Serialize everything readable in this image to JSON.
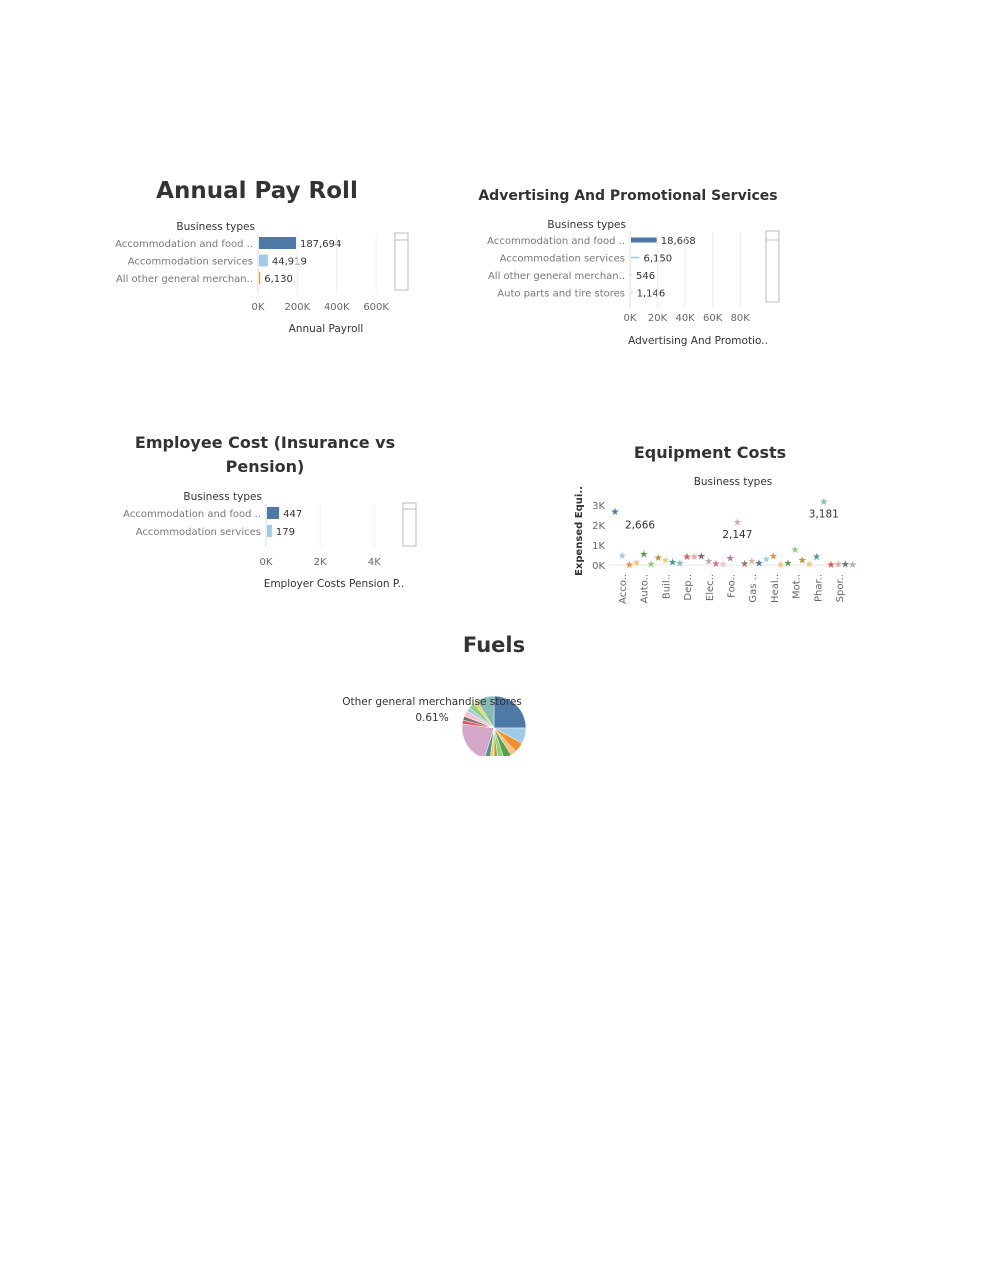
{
  "payroll": {
    "title": "Annual Pay Roll",
    "row_header": "Business types",
    "xlabel": "Annual Payroll",
    "ticks": [
      "0K",
      "200K",
      "400K",
      "600K"
    ],
    "bar_color": "#4e79a7",
    "bar_color_light": "#a0cbe8",
    "bar_color_orange": "#f28e2b"
  },
  "advertising": {
    "title": "Advertising And Promotional Services",
    "row_header": "Business types",
    "xlabel": "Advertising And Promotio..",
    "ticks": [
      "0K",
      "20K",
      "40K",
      "60K",
      "80K"
    ]
  },
  "employee": {
    "title_line1": "Employee Cost (Insurance vs",
    "title_line2": "Pension)",
    "row_header": "Business types",
    "xlabel": "Employer Costs Pension P..",
    "ticks": [
      "0K",
      "2K",
      "4K"
    ]
  },
  "equipment": {
    "title": "Equipment Costs",
    "header": "Business types",
    "ylabel": "Expensed Equi..",
    "yticks": [
      "3K",
      "2K",
      "1K",
      "0K"
    ],
    "xlabels": [
      "Acco..",
      "Auto..",
      "Buil..",
      "Dep..",
      "Elec..",
      "Foo..",
      "Gas ..",
      "Heal..",
      "Mot..",
      "Phar..",
      "Spor.."
    ]
  },
  "fuels": {
    "title": "Fuels",
    "tooltip_name": "Other general merchandise stores",
    "tooltip_value": "0.61%"
  },
  "chart_data": [
    {
      "type": "bar",
      "title": "Annual Pay Roll",
      "xlabel": "Annual Payroll",
      "categories": [
        "Accommodation and food ..",
        "Accommodation services",
        "All other general merchan.."
      ],
      "values": [
        187694,
        44919,
        6130
      ],
      "value_labels": [
        "187,694",
        "44,919",
        "6,130"
      ],
      "xlim": [
        0,
        650000
      ]
    },
    {
      "type": "bar",
      "title": "Advertising And Promotional Services",
      "xlabel": "Advertising And Promotio..",
      "categories": [
        "Accommodation and food ..",
        "Accommodation services",
        "All other general merchan..",
        "Auto parts and tire stores"
      ],
      "values": [
        18668,
        6150,
        546,
        1146
      ],
      "value_labels": [
        "18,668",
        "6,150",
        "546",
        "1,146"
      ],
      "xlim": [
        0,
        90000
      ]
    },
    {
      "type": "bar",
      "title": "Employee Cost (Insurance vs Pension)",
      "xlabel": "Employer Costs Pension P..",
      "categories": [
        "Accommodation and food ..",
        "Accommodation services"
      ],
      "values": [
        447,
        179
      ],
      "value_labels": [
        "447",
        "179"
      ],
      "xlim": [
        0,
        4800
      ]
    },
    {
      "type": "scatter",
      "title": "Equipment Costs",
      "ylabel": "Expensed Equi..",
      "ylim": [
        0,
        3300
      ],
      "points": [
        {
          "x": 0,
          "y": 2666,
          "label": "2,666",
          "color": "#4e79a7"
        },
        {
          "x": 1,
          "y": 480,
          "color": "#a0cbe8"
        },
        {
          "x": 2,
          "y": 20,
          "color": "#f28e2b"
        },
        {
          "x": 3,
          "y": 120,
          "color": "#ffbe7d"
        },
        {
          "x": 4,
          "y": 560,
          "color": "#59a14f"
        },
        {
          "x": 5,
          "y": 50,
          "color": "#8cd17d"
        },
        {
          "x": 6,
          "y": 380,
          "color": "#b6992d"
        },
        {
          "x": 7,
          "y": 250,
          "color": "#f1ce63"
        },
        {
          "x": 8,
          "y": 150,
          "color": "#499894"
        },
        {
          "x": 9,
          "y": 90,
          "color": "#86bcb6"
        },
        {
          "x": 10,
          "y": 430,
          "color": "#e15759"
        },
        {
          "x": 11,
          "y": 420,
          "color": "#ff9d9a"
        },
        {
          "x": 12,
          "y": 440,
          "color": "#79706e"
        },
        {
          "x": 13,
          "y": 210,
          "color": "#bab0ac"
        },
        {
          "x": 14,
          "y": 80,
          "color": "#d37295"
        },
        {
          "x": 15,
          "y": 60,
          "color": "#fabfd2"
        },
        {
          "x": 16,
          "y": 350,
          "color": "#b07aa1"
        },
        {
          "x": 17,
          "y": 2147,
          "label": "2,147",
          "color": "#d4a6c8"
        },
        {
          "x": 18,
          "y": 70,
          "color": "#9d7660"
        },
        {
          "x": 19,
          "y": 210,
          "color": "#d7b5a6"
        },
        {
          "x": 20,
          "y": 110,
          "color": "#4e79a7"
        },
        {
          "x": 21,
          "y": 300,
          "color": "#a0cbe8"
        },
        {
          "x": 22,
          "y": 460,
          "color": "#f28e2b"
        },
        {
          "x": 23,
          "y": 30,
          "color": "#ffbe7d"
        },
        {
          "x": 24,
          "y": 110,
          "color": "#59a14f"
        },
        {
          "x": 25,
          "y": 780,
          "color": "#8cd17d"
        },
        {
          "x": 26,
          "y": 260,
          "color": "#b6992d"
        },
        {
          "x": 27,
          "y": 60,
          "color": "#f1ce63"
        },
        {
          "x": 28,
          "y": 420,
          "color": "#499894"
        },
        {
          "x": 29,
          "y": 3181,
          "label": "3,181",
          "color": "#86bcb6"
        },
        {
          "x": 30,
          "y": 20,
          "color": "#e15759"
        },
        {
          "x": 31,
          "y": 60,
          "color": "#ff9d9a"
        },
        {
          "x": 32,
          "y": 50,
          "color": "#79706e"
        },
        {
          "x": 33,
          "y": 30,
          "color": "#bab0ac"
        }
      ]
    },
    {
      "type": "pie",
      "title": "Fuels",
      "highlight": {
        "name": "Other general merchandise stores",
        "value": 0.61
      },
      "slices": [
        {
          "value": 25,
          "color": "#4e79a7"
        },
        {
          "value": 8,
          "color": "#a0cbe8"
        },
        {
          "value": 5,
          "color": "#f28e2b"
        },
        {
          "value": 3,
          "color": "#ffbe7d"
        },
        {
          "value": 4,
          "color": "#59a14f"
        },
        {
          "value": 3,
          "color": "#8cd17d"
        },
        {
          "value": 2,
          "color": "#b6992d"
        },
        {
          "value": 2,
          "color": "#f1ce63"
        },
        {
          "value": 3,
          "color": "#499894"
        },
        {
          "value": 22,
          "color": "#d4a6c8"
        },
        {
          "value": 2,
          "color": "#e15759"
        },
        {
          "value": 2,
          "color": "#79706e"
        },
        {
          "value": 3,
          "color": "#fabfd2"
        },
        {
          "value": 2,
          "color": "#a0cbe8"
        },
        {
          "value": 3,
          "color": "#8cd17d"
        },
        {
          "value": 2,
          "color": "#f1ce63"
        },
        {
          "value": 9,
          "color": "#86bcb6"
        }
      ]
    }
  ]
}
